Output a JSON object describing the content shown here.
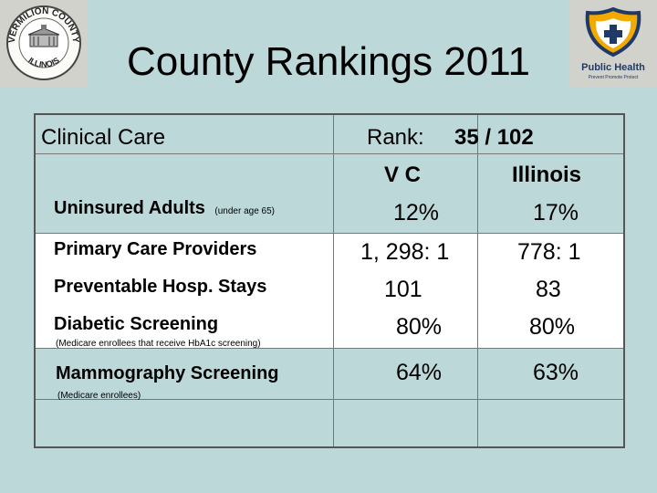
{
  "slide": {
    "title": "County Rankings 2011",
    "left_logo": {
      "top_text": "VERMILION COUNTY",
      "bottom_text": "ILLINOIS"
    },
    "right_logo": {
      "name": "Public Health",
      "tagline": "Prevent  Promote  Protect"
    }
  },
  "table": {
    "section": "Clinical Care",
    "rank_label": "Rank:",
    "rank_value": "35 / 102",
    "col_vc": "V C",
    "col_il": "Illinois",
    "rows": [
      {
        "label": "Uninsured Adults",
        "note": "(under age 65)",
        "vc": "12%",
        "il": "17%"
      },
      {
        "label": "Primary Care Providers",
        "note": "",
        "vc": "1, 298: 1",
        "il": "778: 1"
      },
      {
        "label": "Preventable Hosp. Stays",
        "note": "",
        "vc": "101",
        "il": "83"
      },
      {
        "label": "Diabetic Screening",
        "note": "(Medicare enrollees that receive HbA1c screening)",
        "vc": "80%",
        "il": "80%"
      },
      {
        "label": "Mammography Screening",
        "note": "(Medicare enrollees)",
        "vc": "64%",
        "il": "63%"
      }
    ]
  }
}
